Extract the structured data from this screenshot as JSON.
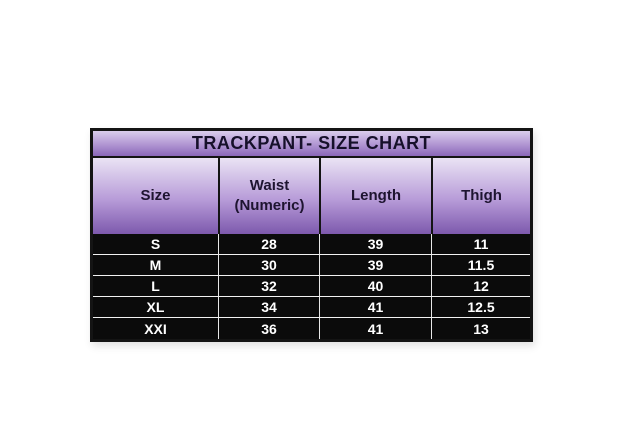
{
  "table": {
    "title": "TRACKPANT- SIZE CHART",
    "columns": [
      "Size",
      "Waist (Numeric)",
      "Length",
      "Thigh"
    ],
    "rows": [
      [
        "S",
        "28",
        "39",
        "11"
      ],
      [
        "M",
        "30",
        "39",
        "11.5"
      ],
      [
        "L",
        "32",
        "40",
        "12"
      ],
      [
        "XL",
        "34",
        "41",
        "12.5"
      ],
      [
        "XXI",
        "36",
        "41",
        "13"
      ]
    ]
  },
  "chart_data": {
    "type": "table",
    "title": "TRACKPANT- SIZE CHART",
    "columns": [
      "Size",
      "Waist (Numeric)",
      "Length",
      "Thigh"
    ],
    "rows": [
      {
        "size": "S",
        "waist_numeric": 28,
        "length": 39,
        "thigh": 11
      },
      {
        "size": "M",
        "waist_numeric": 30,
        "length": 39,
        "thigh": 11.5
      },
      {
        "size": "L",
        "waist_numeric": 32,
        "length": 40,
        "thigh": 12
      },
      {
        "size": "XL",
        "waist_numeric": 34,
        "length": 41,
        "thigh": 12.5
      },
      {
        "size": "XXI",
        "waist_numeric": 36,
        "length": 41,
        "thigh": 13
      }
    ],
    "layout": "title bar + header row with purple vertical gradient, body rows black with white text"
  },
  "colors": {
    "title_gradient_top": "#d9cdec",
    "title_gradient_bottom": "#8a67b8",
    "header_gradient_top": "#eae3f4",
    "header_gradient_bottom": "#7d59ad",
    "border": "#141414",
    "body_background": "#0b0b0b",
    "body_text": "#ffffff",
    "page_background": "#ffffff"
  }
}
